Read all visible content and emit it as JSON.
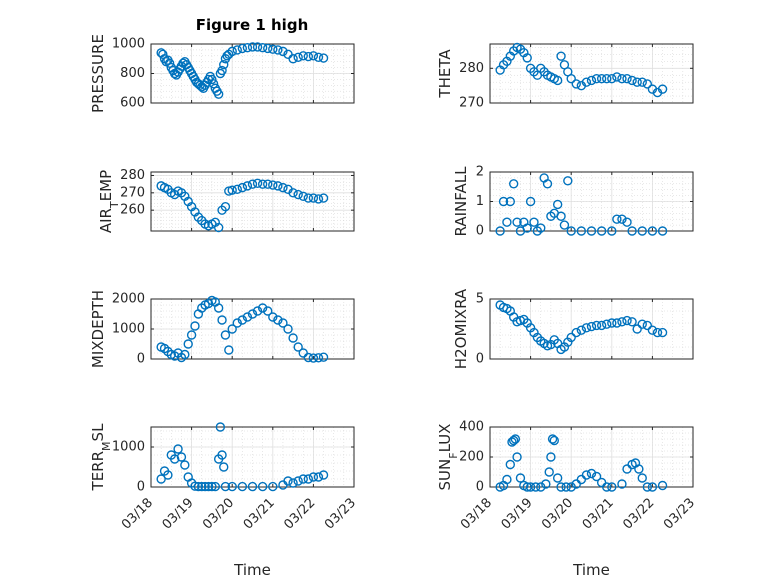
{
  "figure": {
    "title": "Figure 1 high",
    "marker_color": "#0072bd",
    "xlabel": "Time",
    "date_ticks": [
      "03/18",
      "03/19",
      "03/20",
      "03/21",
      "03/22",
      "03/23"
    ]
  },
  "chart_data": [
    {
      "type": "scatter",
      "ylabel": "PRESSURE",
      "title": "Figure 1 high",
      "ylim": [
        600,
        1000
      ],
      "yticks": [
        600,
        800,
        1000
      ],
      "xlim": [
        "03/18",
        "03/23"
      ],
      "grid": true,
      "show_x_ticklabels": false,
      "x": [
        "03/18 06:00",
        "03/18 07:00",
        "03/18 08:00",
        "03/18 09:00",
        "03/18 10:00",
        "03/18 11:00",
        "03/18 12:00",
        "03/18 13:00",
        "03/18 14:00",
        "03/18 15:00",
        "03/18 16:00",
        "03/18 17:00",
        "03/18 18:00",
        "03/18 19:00",
        "03/18 20:00",
        "03/18 21:00",
        "03/18 22:00",
        "03/18 23:00",
        "03/19 00:00",
        "03/19 01:00",
        "03/19 02:00",
        "03/19 03:00",
        "03/19 04:00",
        "03/19 05:00",
        "03/19 06:00",
        "03/19 07:00",
        "03/19 08:00",
        "03/19 09:00",
        "03/19 10:00",
        "03/19 11:00",
        "03/19 12:00",
        "03/19 13:00",
        "03/19 14:00",
        "03/19 15:00",
        "03/19 16:00",
        "03/19 17:00",
        "03/19 18:00",
        "03/19 19:00",
        "03/19 20:00",
        "03/19 21:00",
        "03/19 22:00",
        "03/20 00:00",
        "03/20 03:00",
        "03/20 06:00",
        "03/20 09:00",
        "03/20 12:00",
        "03/20 15:00",
        "03/20 18:00",
        "03/20 21:00",
        "03/21 00:00",
        "03/21 03:00",
        "03/21 06:00",
        "03/21 09:00",
        "03/21 12:00",
        "03/21 15:00",
        "03/21 18:00",
        "03/21 21:00",
        "03/22 00:00",
        "03/22 03:00",
        "03/22 06:00"
      ],
      "y": [
        940,
        930,
        900,
        880,
        890,
        870,
        840,
        820,
        800,
        790,
        810,
        830,
        850,
        870,
        880,
        860,
        840,
        820,
        800,
        780,
        760,
        740,
        730,
        720,
        710,
        700,
        720,
        740,
        760,
        780,
        760,
        730,
        700,
        680,
        660,
        800,
        820,
        860,
        900,
        920,
        930,
        950,
        960,
        970,
        975,
        980,
        980,
        975,
        970,
        965,
        960,
        950,
        930,
        900,
        910,
        920,
        915,
        920,
        910,
        905
      ]
    },
    {
      "type": "scatter",
      "ylabel": "THETA",
      "ylim": [
        270,
        287
      ],
      "yticks": [
        270,
        280
      ],
      "xlim": [
        "03/18",
        "03/23"
      ],
      "grid": true,
      "show_x_ticklabels": false,
      "x": [
        "03/18 06:00",
        "03/18 08:00",
        "03/18 10:00",
        "03/18 12:00",
        "03/18 14:00",
        "03/18 16:00",
        "03/18 18:00",
        "03/18 20:00",
        "03/18 22:00",
        "03/19 00:00",
        "03/19 02:00",
        "03/19 04:00",
        "03/19 06:00",
        "03/19 08:00",
        "03/19 10:00",
        "03/19 12:00",
        "03/19 14:00",
        "03/19 16:00",
        "03/19 18:00",
        "03/19 20:00",
        "03/19 22:00",
        "03/20 00:00",
        "03/20 03:00",
        "03/20 06:00",
        "03/20 09:00",
        "03/20 12:00",
        "03/20 15:00",
        "03/20 18:00",
        "03/20 21:00",
        "03/21 00:00",
        "03/21 03:00",
        "03/21 06:00",
        "03/21 09:00",
        "03/21 12:00",
        "03/21 15:00",
        "03/21 18:00",
        "03/21 21:00",
        "03/22 00:00",
        "03/22 03:00",
        "03/22 06:00"
      ],
      "y": [
        279.5,
        281,
        282,
        283.5,
        285,
        286,
        285.5,
        284.5,
        283,
        280,
        279,
        278,
        280,
        279,
        278,
        277.5,
        277,
        276.5,
        283.5,
        281,
        279,
        277,
        275.5,
        275,
        276,
        276.5,
        277,
        277,
        277,
        277,
        277.5,
        277,
        277,
        276.5,
        276,
        276,
        275.5,
        274,
        273,
        274
      ]
    },
    {
      "type": "scatter",
      "ylabel": "AIR_TEMP",
      "ylim": [
        248,
        282
      ],
      "yticks": [
        260,
        270,
        280
      ],
      "xlim": [
        "03/18",
        "03/23"
      ],
      "grid": true,
      "show_x_ticklabels": false,
      "x": [
        "03/18 06:00",
        "03/18 08:00",
        "03/18 10:00",
        "03/18 12:00",
        "03/18 14:00",
        "03/18 16:00",
        "03/18 18:00",
        "03/18 20:00",
        "03/18 22:00",
        "03/19 00:00",
        "03/19 02:00",
        "03/19 04:00",
        "03/19 06:00",
        "03/19 08:00",
        "03/19 10:00",
        "03/19 12:00",
        "03/19 14:00",
        "03/19 16:00",
        "03/19 18:00",
        "03/19 20:00",
        "03/19 22:00",
        "03/20 00:00",
        "03/20 03:00",
        "03/20 06:00",
        "03/20 09:00",
        "03/20 12:00",
        "03/20 15:00",
        "03/20 18:00",
        "03/20 21:00",
        "03/21 00:00",
        "03/21 03:00",
        "03/21 06:00",
        "03/21 09:00",
        "03/21 12:00",
        "03/21 15:00",
        "03/21 18:00",
        "03/21 21:00",
        "03/22 00:00",
        "03/22 03:00",
        "03/22 06:00"
      ],
      "y": [
        274,
        273,
        272,
        270,
        269,
        271,
        270,
        268,
        265,
        262,
        259,
        256,
        254,
        252,
        251,
        252,
        253,
        250,
        260,
        262,
        271,
        271.5,
        272,
        273,
        274,
        275,
        275.5,
        275,
        275,
        274.5,
        274,
        273,
        272,
        270,
        269,
        268,
        267,
        267,
        266.5,
        267
      ]
    },
    {
      "type": "scatter",
      "ylabel": "RAINFALL",
      "ylim": [
        0,
        2
      ],
      "yticks": [
        0,
        1,
        2
      ],
      "xlim": [
        "03/18",
        "03/23"
      ],
      "grid": true,
      "show_x_ticklabels": false,
      "x": [
        "03/18 06:00",
        "03/18 08:00",
        "03/18 10:00",
        "03/18 12:00",
        "03/18 14:00",
        "03/18 16:00",
        "03/18 18:00",
        "03/18 20:00",
        "03/18 22:00",
        "03/19 00:00",
        "03/19 02:00",
        "03/19 04:00",
        "03/19 06:00",
        "03/19 08:00",
        "03/19 10:00",
        "03/19 12:00",
        "03/19 14:00",
        "03/19 16:00",
        "03/19 18:00",
        "03/19 20:00",
        "03/19 22:00",
        "03/20 00:00",
        "03/20 06:00",
        "03/20 12:00",
        "03/20 18:00",
        "03/21 00:00",
        "03/21 03:00",
        "03/21 06:00",
        "03/21 09:00",
        "03/21 12:00",
        "03/21 18:00",
        "03/22 00:00",
        "03/22 06:00"
      ],
      "y": [
        0,
        1,
        0.3,
        1,
        1.6,
        0.3,
        0,
        0.3,
        0.1,
        1,
        0.3,
        0,
        0.1,
        1.8,
        1.6,
        0.5,
        0.6,
        0.9,
        0.5,
        0.2,
        1.7,
        0,
        0,
        0,
        0,
        0,
        0.4,
        0.4,
        0.3,
        0,
        0,
        0,
        0
      ]
    },
    {
      "type": "scatter",
      "ylabel": "MIXDEPTH",
      "ylim": [
        0,
        2000
      ],
      "yticks": [
        0,
        1000,
        2000
      ],
      "xlim": [
        "03/18",
        "03/23"
      ],
      "grid": true,
      "show_x_ticklabels": false,
      "x": [
        "03/18 06:00",
        "03/18 08:00",
        "03/18 10:00",
        "03/18 12:00",
        "03/18 14:00",
        "03/18 16:00",
        "03/18 18:00",
        "03/18 20:00",
        "03/18 22:00",
        "03/19 00:00",
        "03/19 02:00",
        "03/19 04:00",
        "03/19 06:00",
        "03/19 08:00",
        "03/19 10:00",
        "03/19 12:00",
        "03/19 14:00",
        "03/19 16:00",
        "03/19 18:00",
        "03/19 20:00",
        "03/19 22:00",
        "03/20 00:00",
        "03/20 03:00",
        "03/20 06:00",
        "03/20 09:00",
        "03/20 12:00",
        "03/20 15:00",
        "03/20 18:00",
        "03/20 21:00",
        "03/21 00:00",
        "03/21 03:00",
        "03/21 06:00",
        "03/21 09:00",
        "03/21 12:00",
        "03/21 15:00",
        "03/21 18:00",
        "03/21 21:00",
        "03/22 00:00",
        "03/22 03:00",
        "03/22 06:00"
      ],
      "y": [
        400,
        350,
        250,
        150,
        100,
        200,
        50,
        150,
        500,
        800,
        1100,
        1500,
        1700,
        1800,
        1850,
        1950,
        1900,
        1700,
        1300,
        800,
        300,
        1000,
        1200,
        1300,
        1400,
        1500,
        1600,
        1700,
        1600,
        1400,
        1300,
        1200,
        1000,
        700,
        400,
        200,
        50,
        30,
        40,
        60
      ]
    },
    {
      "type": "scatter",
      "ylabel": "H2OMIXRA",
      "ylim": [
        0,
        5
      ],
      "yticks": [
        0,
        5
      ],
      "xlim": [
        "03/18",
        "03/23"
      ],
      "grid": true,
      "show_x_ticklabels": false,
      "x": [
        "03/18 06:00",
        "03/18 08:00",
        "03/18 10:00",
        "03/18 12:00",
        "03/18 14:00",
        "03/18 16:00",
        "03/18 18:00",
        "03/18 20:00",
        "03/18 22:00",
        "03/19 00:00",
        "03/19 02:00",
        "03/19 04:00",
        "03/19 06:00",
        "03/19 08:00",
        "03/19 10:00",
        "03/19 12:00",
        "03/19 14:00",
        "03/19 16:00",
        "03/19 18:00",
        "03/19 20:00",
        "03/19 22:00",
        "03/20 00:00",
        "03/20 03:00",
        "03/20 06:00",
        "03/20 09:00",
        "03/20 12:00",
        "03/20 15:00",
        "03/20 18:00",
        "03/20 21:00",
        "03/21 00:00",
        "03/21 03:00",
        "03/21 06:00",
        "03/21 09:00",
        "03/21 12:00",
        "03/21 15:00",
        "03/21 18:00",
        "03/21 21:00",
        "03/22 00:00",
        "03/22 03:00",
        "03/22 06:00"
      ],
      "y": [
        4.5,
        4.3,
        4.2,
        4,
        3.5,
        3.1,
        3.2,
        3.3,
        3,
        2.6,
        2.2,
        1.8,
        1.5,
        1.3,
        1.1,
        1.2,
        1.6,
        1.3,
        0.8,
        1,
        1.4,
        1.8,
        2.2,
        2.4,
        2.6,
        2.7,
        2.8,
        2.8,
        2.9,
        3,
        3,
        3.1,
        3.2,
        3.1,
        2.5,
        2.9,
        2.8,
        2.4,
        2.2,
        2.2
      ]
    },
    {
      "type": "scatter",
      "ylabel": "TERR_MSL",
      "ylim": [
        0,
        1500
      ],
      "yticks": [
        0,
        1000
      ],
      "xlim": [
        "03/18",
        "03/23"
      ],
      "grid": true,
      "show_x_ticklabels": true,
      "x": [
        "03/18 06:00",
        "03/18 08:00",
        "03/18 10:00",
        "03/18 12:00",
        "03/18 14:00",
        "03/18 16:00",
        "03/18 18:00",
        "03/18 20:00",
        "03/18 22:00",
        "03/19 00:00",
        "03/19 02:00",
        "03/19 04:00",
        "03/19 06:00",
        "03/19 08:00",
        "03/19 10:00",
        "03/19 12:00",
        "03/19 14:00",
        "03/19 16:00",
        "03/19 17:00",
        "03/19 18:00",
        "03/19 19:00",
        "03/19 20:00",
        "03/20 00:00",
        "03/20 06:00",
        "03/20 12:00",
        "03/20 18:00",
        "03/21 00:00",
        "03/21 06:00",
        "03/21 09:00",
        "03/21 12:00",
        "03/21 15:00",
        "03/21 18:00",
        "03/21 21:00",
        "03/22 00:00",
        "03/22 03:00",
        "03/22 06:00"
      ],
      "y": [
        200,
        400,
        300,
        800,
        700,
        950,
        750,
        550,
        250,
        100,
        20,
        10,
        10,
        10,
        10,
        10,
        10,
        700,
        1500,
        800,
        500,
        10,
        10,
        10,
        10,
        10,
        10,
        50,
        150,
        100,
        150,
        200,
        200,
        250,
        250,
        300
      ]
    },
    {
      "type": "scatter",
      "ylabel": "SUN_FLUX",
      "ylim": [
        0,
        400
      ],
      "yticks": [
        0,
        200,
        400
      ],
      "xlim": [
        "03/18",
        "03/23"
      ],
      "grid": true,
      "show_x_ticklabels": true,
      "x": [
        "03/18 06:00",
        "03/18 08:00",
        "03/18 10:00",
        "03/18 12:00",
        "03/18 13:00",
        "03/18 14:00",
        "03/18 15:00",
        "03/18 16:00",
        "03/18 18:00",
        "03/18 20:00",
        "03/18 22:00",
        "03/19 00:00",
        "03/19 03:00",
        "03/19 06:00",
        "03/19 09:00",
        "03/19 11:00",
        "03/19 12:00",
        "03/19 13:00",
        "03/19 14:00",
        "03/19 16:00",
        "03/19 18:00",
        "03/19 21:00",
        "03/20 00:00",
        "03/20 03:00",
        "03/20 06:00",
        "03/20 09:00",
        "03/20 12:00",
        "03/20 15:00",
        "03/20 18:00",
        "03/20 21:00",
        "03/21 00:00",
        "03/21 06:00",
        "03/21 09:00",
        "03/21 12:00",
        "03/21 14:00",
        "03/21 16:00",
        "03/21 18:00",
        "03/21 21:00",
        "03/22 00:00",
        "03/22 06:00"
      ],
      "y": [
        0,
        10,
        50,
        150,
        300,
        310,
        320,
        200,
        60,
        10,
        0,
        0,
        0,
        0,
        20,
        100,
        200,
        320,
        310,
        60,
        0,
        0,
        0,
        20,
        50,
        80,
        90,
        70,
        30,
        0,
        0,
        20,
        120,
        150,
        160,
        120,
        60,
        0,
        0,
        10
      ]
    }
  ]
}
